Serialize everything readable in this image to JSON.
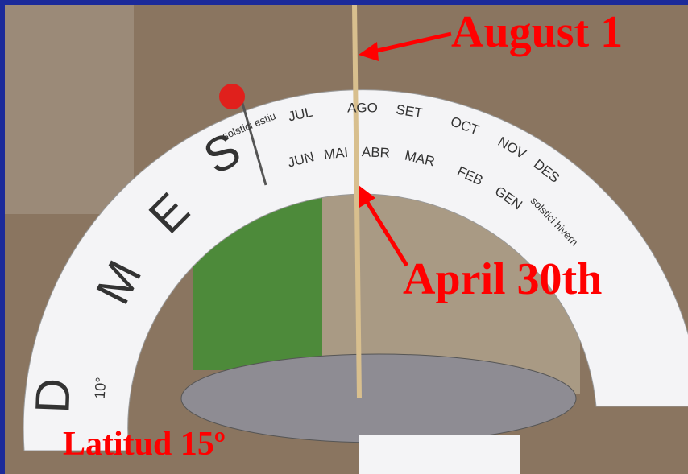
{
  "annotations": {
    "top": "August 1",
    "middle": "April 30th",
    "bottom": "Latitud 15º"
  },
  "dial": {
    "word": [
      "M",
      "E",
      "S",
      "D"
    ],
    "latitude_mark": "10°",
    "upper_row": [
      "JUL",
      "AGO",
      "SET",
      "OCT",
      "NOV",
      "DES"
    ],
    "lower_row": [
      "JUN",
      "MAI",
      "ABR",
      "MAR",
      "FEB",
      "GEN"
    ],
    "summer_solstice": "solstici estiu",
    "winter_solstice": "solstici hivern"
  }
}
